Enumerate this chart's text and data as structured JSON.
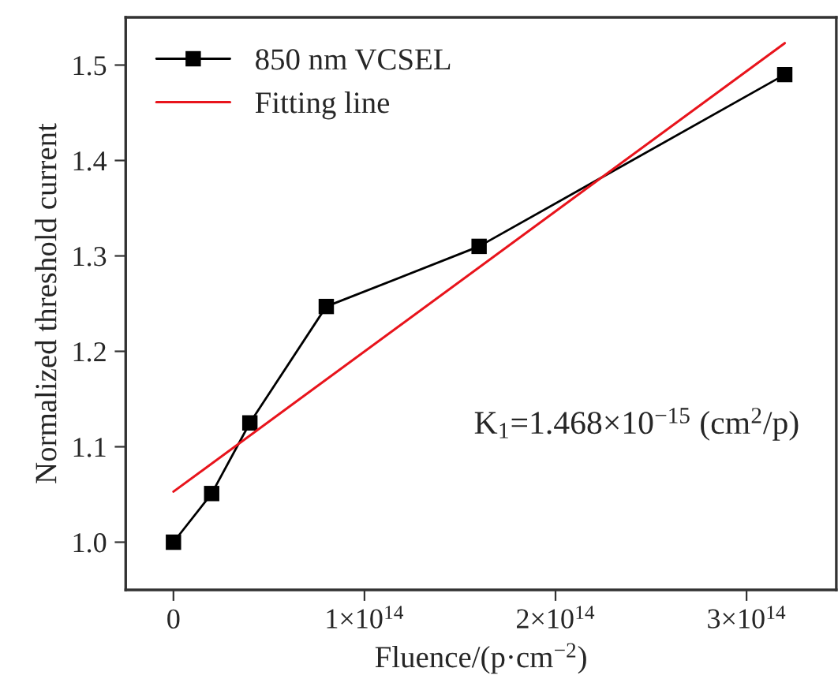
{
  "chart_data": {
    "type": "line",
    "xlabel": "Fluence/(p·cm$^{−2}$)",
    "ylabel": "Normalized threshold current",
    "series": [
      {
        "name": "850 nm VCSEL",
        "color": "#000000",
        "marker": "square",
        "x": [
          0,
          20000000000000.0,
          40000000000000.0,
          80000000000000.0,
          160000000000000.0,
          320000000000000.0
        ],
        "values": [
          1.0,
          1.051,
          1.125,
          1.247,
          1.31,
          1.49
        ]
      },
      {
        "name": "Fitting line",
        "color": "#e8141c",
        "marker": "none",
        "x": [
          0,
          320000000000000.0
        ],
        "values": [
          1.053,
          1.523
        ]
      }
    ],
    "annotations": [
      "K$_{1}$=1.468×10$^{−15}$ (cm$^{2}$/p)"
    ],
    "xlim": [
      -25000000000000.0,
      347000000000000.0
    ],
    "xticks": [
      0,
      {
        "value": 100000000000000.0,
        "label": "1×10$^{14}$"
      },
      {
        "value": 200000000000000.0,
        "label": "2×10$^{14}$"
      },
      {
        "value": 300000000000000.0,
        "label": "3×10$^{14}$"
      }
    ],
    "ylim": [
      0.95,
      1.55
    ],
    "yticks": [
      {
        "value": 1.0,
        "label": "1.0"
      },
      1.1,
      1.2,
      1.3,
      1.4,
      1.5
    ],
    "grid": false,
    "legend": "top left"
  }
}
